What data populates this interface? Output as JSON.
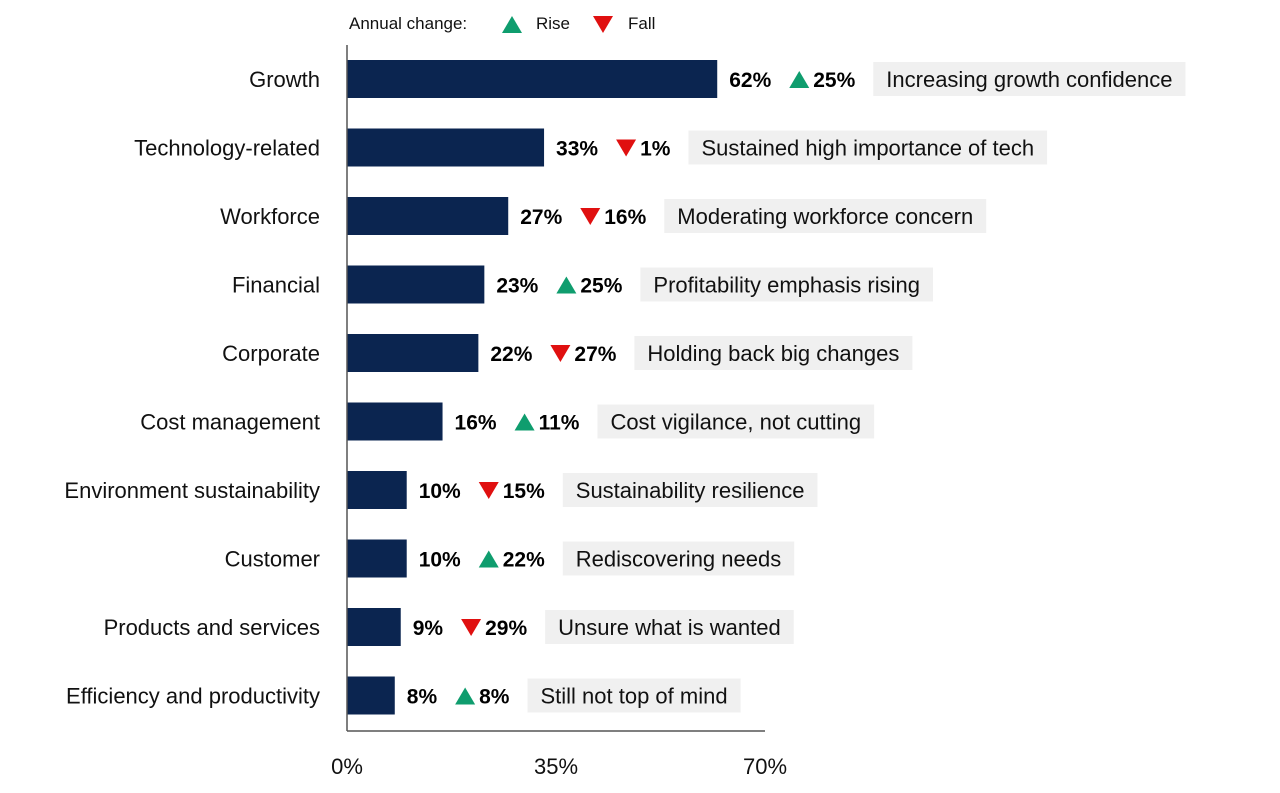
{
  "legend": {
    "title": "Annual change:",
    "items": [
      {
        "label": "Rise",
        "direction": "up",
        "color": "#0f9d6e"
      },
      {
        "label": "Fall",
        "direction": "down",
        "color": "#e01010"
      }
    ]
  },
  "colors": {
    "bar": "#0b2550",
    "rise": "#0f9d6e",
    "fall": "#e01010",
    "note_bg": "#f0f0f0",
    "axis": "#555555"
  },
  "chart_data": {
    "type": "bar",
    "orientation": "horizontal",
    "xlim": [
      0,
      70
    ],
    "x_ticks": [
      {
        "value": 0,
        "label": "0%"
      },
      {
        "value": 35,
        "label": "35%"
      },
      {
        "value": 70,
        "label": "70%"
      }
    ],
    "grid": false,
    "legend_position": "top",
    "categories": [
      "Growth",
      "Technology-related",
      "Workforce",
      "Financial",
      "Corporate",
      "Cost management",
      "Environment sustainability",
      "Customer",
      "Products and services",
      "Efficiency and productivity"
    ],
    "values": [
      62,
      33,
      27,
      23,
      22,
      16,
      10,
      10,
      9,
      8
    ],
    "value_labels": [
      "62%",
      "33%",
      "27%",
      "23%",
      "22%",
      "16%",
      "10%",
      "10%",
      "9%",
      "8%"
    ],
    "changes": [
      {
        "direction": "up",
        "label": "25%"
      },
      {
        "direction": "down",
        "label": "1%"
      },
      {
        "direction": "down",
        "label": "16%"
      },
      {
        "direction": "up",
        "label": "25%"
      },
      {
        "direction": "down",
        "label": "27%"
      },
      {
        "direction": "up",
        "label": "11%"
      },
      {
        "direction": "down",
        "label": "15%"
      },
      {
        "direction": "up",
        "label": "22%"
      },
      {
        "direction": "down",
        "label": "29%"
      },
      {
        "direction": "up",
        "label": "8%"
      }
    ],
    "annotations": [
      "Increasing growth confidence",
      "Sustained high importance of tech",
      "Moderating workforce concern",
      "Profitability emphasis rising",
      "Holding back big changes",
      "Cost vigilance, not cutting",
      "Sustainability resilience",
      "Rediscovering needs",
      "Unsure what is wanted",
      "Still not top of mind"
    ]
  }
}
